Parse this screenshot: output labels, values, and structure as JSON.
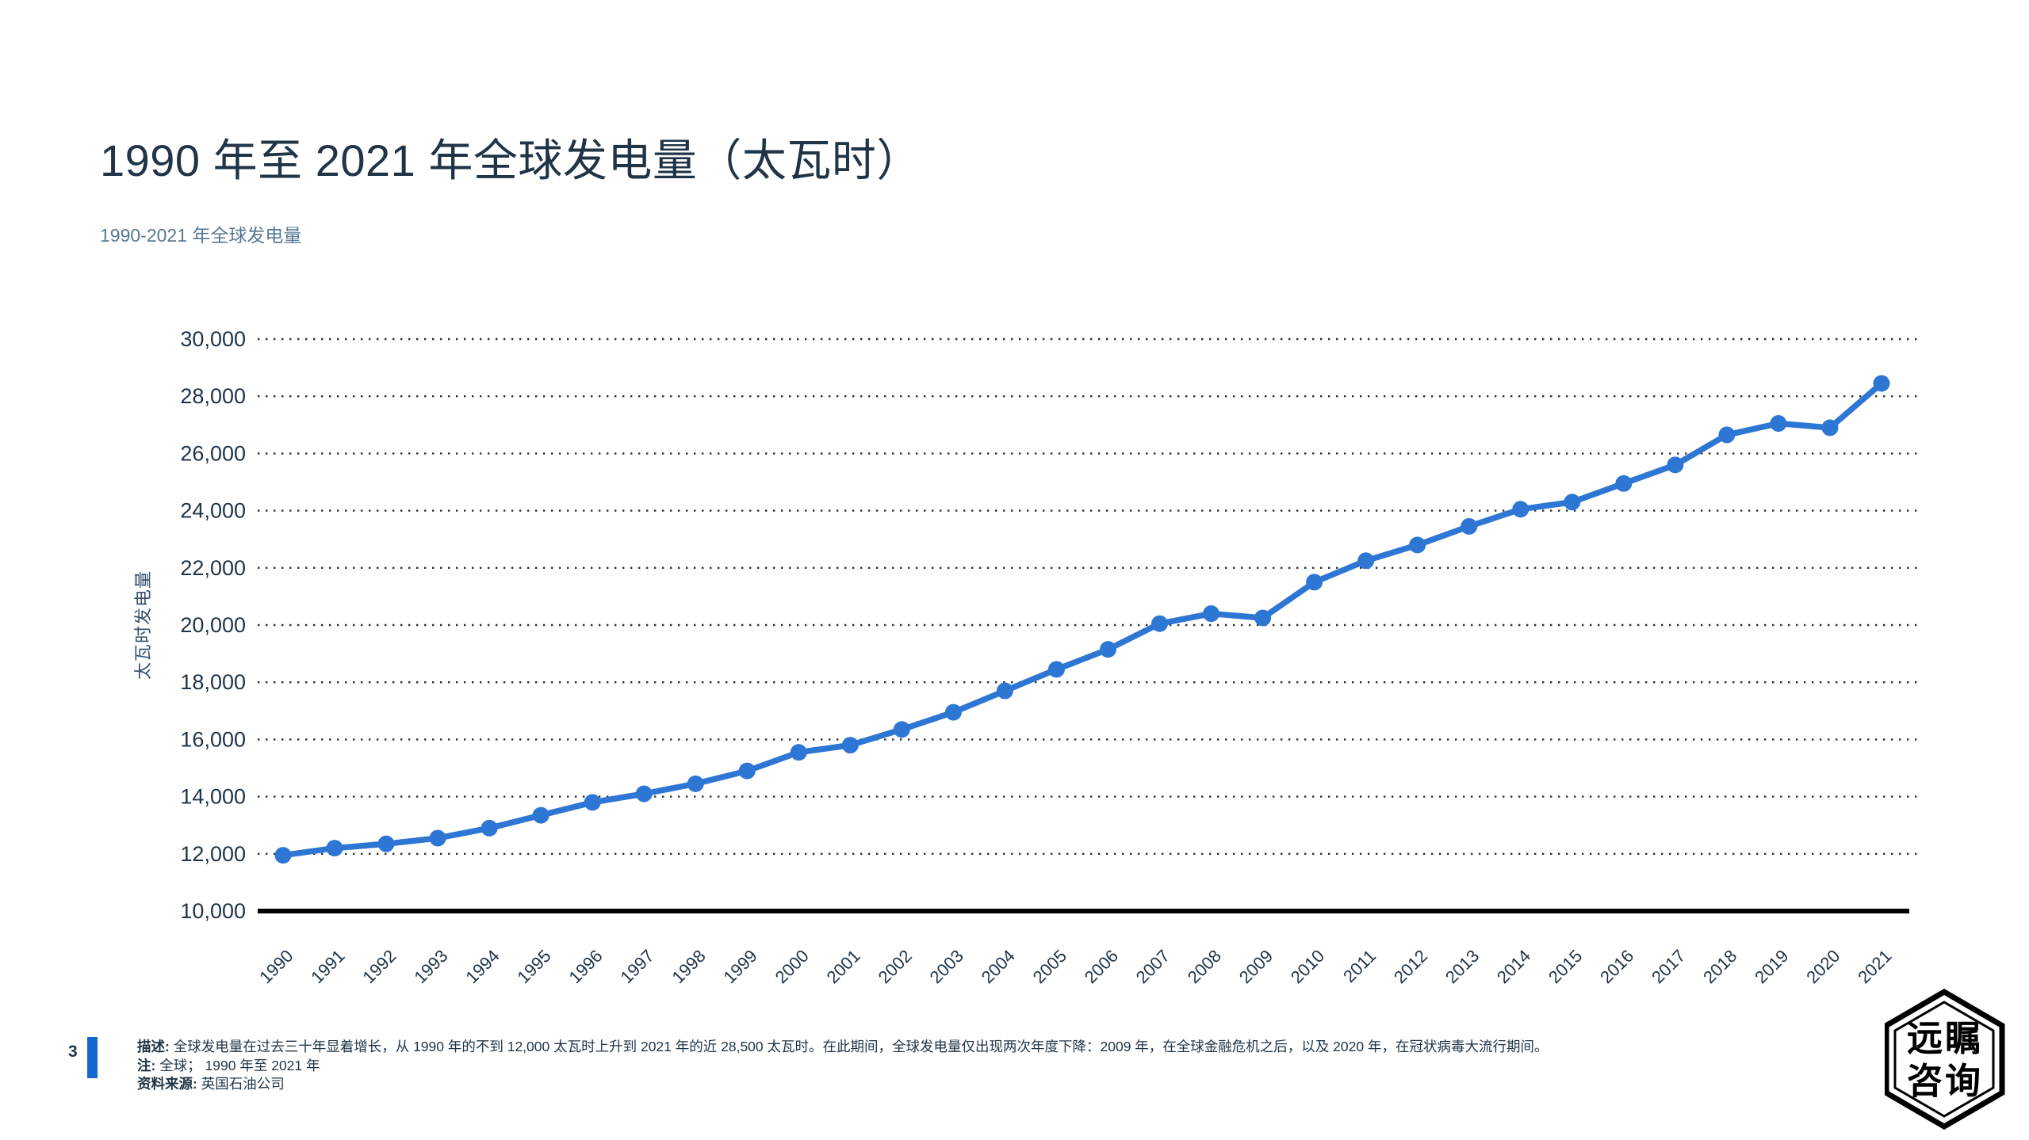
{
  "page": {
    "title": "1990 年至 2021 年全球发电量（太瓦时）"
  },
  "footer": {
    "page_number": "3",
    "description_label": "描述:",
    "description": "全球发电量在过去三十年显着增长，从 1990 年的不到 12,000 太瓦时上升到 2021 年的近 28,500 太瓦时。在此期间，全球发电量仅出现两次年度下降：2009 年，在全球金融危机之后，以及 2020 年，在冠状病毒大流行期间。",
    "note_label": "注:",
    "note": "全球； 1990 年至 2021 年",
    "source_label": "资料来源:",
    "source": "英国石油公司"
  },
  "logo": {
    "line1": "远瞩",
    "line2": "咨询"
  },
  "colors": {
    "line": "#2e76d4",
    "accent_bar": "#1567d3",
    "title_text": "#1f3447",
    "subtitle_text": "#557893",
    "grid": "#2d2d2d"
  },
  "chart_data": {
    "type": "line",
    "title": "1990-2021 年全球发电量",
    "xlabel": "",
    "ylabel": "太瓦时发电量",
    "ylim": [
      10000,
      30000
    ],
    "ytick_step": 2000,
    "grid": "horizontal-dotted",
    "legend_position": "none",
    "x": [
      1990,
      1991,
      1992,
      1993,
      1994,
      1995,
      1996,
      1997,
      1998,
      1999,
      2000,
      2001,
      2002,
      2003,
      2004,
      2005,
      2006,
      2007,
      2008,
      2009,
      2010,
      2011,
      2012,
      2013,
      2014,
      2015,
      2016,
      2017,
      2018,
      2019,
      2020,
      2021
    ],
    "series": [
      {
        "name": "全球发电量 (太瓦时)",
        "values": [
          11950,
          12200,
          12350,
          12550,
          12900,
          13350,
          13800,
          14100,
          14450,
          14900,
          15550,
          15800,
          16350,
          16950,
          17700,
          18450,
          19150,
          20050,
          20400,
          20250,
          21500,
          22250,
          22800,
          23450,
          24050,
          24300,
          24950,
          25600,
          26650,
          27050,
          26900,
          28450
        ]
      }
    ]
  }
}
